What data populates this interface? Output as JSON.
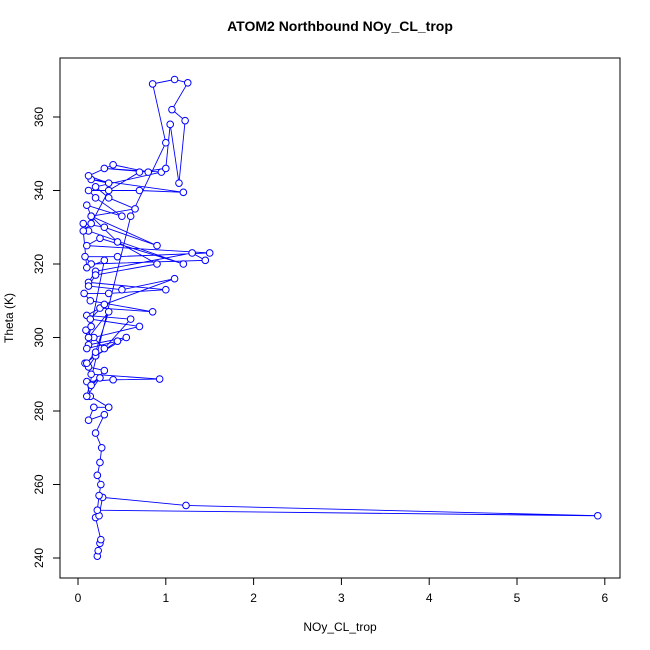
{
  "chart_data": {
    "type": "line",
    "title": "ATOM2 Northbound NOy_CL_trop",
    "x_label": "NOy_CL_trop",
    "y_label": "Theta (K)",
    "color": "#0000ff",
    "markers": true,
    "xlim": [
      -0.205,
      6.173
    ],
    "ylim": [
      234.56,
      376.05
    ],
    "xticks": [
      0,
      1,
      2,
      3,
      4,
      5,
      6
    ],
    "yticks": [
      240,
      260,
      280,
      300,
      320,
      340,
      360
    ],
    "x": [
      0.22,
      0.23,
      0.25,
      0.26,
      0.2,
      0.24,
      0.28,
      1.23,
      5.92,
      0.22,
      0.24,
      0.26,
      0.22,
      0.25,
      0.27,
      0.2,
      0.3,
      0.12,
      0.18,
      0.35,
      0.14,
      0.1,
      0.4,
      0.93,
      0.15,
      0.08,
      0.2,
      0.55,
      0.12,
      0.09,
      0.3,
      0.6,
      0.1,
      0.25,
      0.85,
      0.14,
      0.07,
      0.35,
      1.0,
      0.12,
      0.2,
      1.3,
      1.45,
      0.15,
      0.08,
      0.45,
      1.5,
      0.1,
      0.25,
      1.2,
      0.12,
      0.06,
      0.3,
      0.9,
      0.15,
      0.1,
      0.5,
      0.2,
      0.12,
      0.7,
      1.2,
      0.15,
      0.35,
      0.12,
      0.4,
      0.8,
      0.3,
      0.95,
      0.2,
      0.35,
      0.65,
      0.15,
      0.45,
      0.9,
      0.2,
      0.12,
      0.5,
      1.1,
      0.3,
      0.14,
      0.7,
      0.18,
      0.1,
      0.45,
      0.2,
      0.12,
      0.3,
      0.15,
      0.25,
      0.1,
      0.6,
      1.0,
      0.85,
      1.1,
      1.25,
      1.07,
      1.22,
      1.15,
      1.05,
      1.0,
      0.7,
      0.35,
      0.15,
      0.06,
      0.1,
      0.3,
      0.15,
      0.12,
      0.35,
      0.2,
      0.1
    ],
    "values": [
      240.5,
      242,
      244,
      245,
      251,
      251.5,
      256.5,
      254.3,
      251.5,
      253,
      257,
      260,
      262.5,
      266,
      270,
      274,
      279,
      277.5,
      281,
      281,
      284,
      288,
      288.5,
      288.7,
      290,
      293,
      295,
      300,
      298,
      302,
      297,
      305,
      306,
      308,
      307,
      310,
      312,
      312,
      313,
      315,
      318,
      323,
      321,
      320,
      322,
      322,
      323,
      325,
      327,
      320,
      329,
      331,
      330,
      325,
      333,
      336,
      333,
      338,
      340,
      340,
      339.5,
      343,
      342,
      344,
      347,
      345,
      346,
      345,
      341,
      338,
      335,
      333,
      326,
      320,
      317,
      314,
      313,
      316,
      309,
      305,
      303,
      300,
      297,
      299,
      295,
      292,
      291,
      287,
      289,
      284,
      333,
      353,
      369,
      370.2,
      369.3,
      362,
      359,
      342,
      358,
      346,
      345,
      340,
      331,
      329,
      319,
      321,
      303,
      300,
      307,
      296,
      293
    ]
  }
}
